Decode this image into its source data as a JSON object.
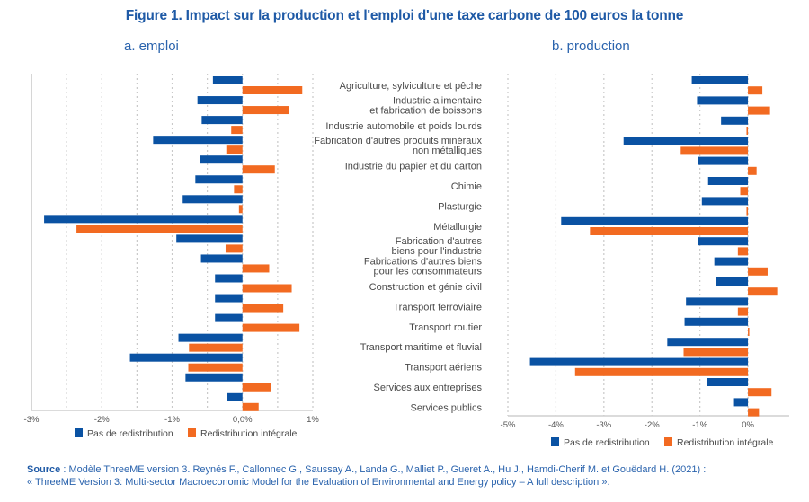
{
  "figure_title": "Figure 1. Impact sur la production et l'emploi d'une taxe carbone de 100 euros la tonne",
  "colors": {
    "pas_de_redistribution": "#0a52a3",
    "redistribution_integrale": "#f26a21",
    "title": "#1f5aa6"
  },
  "source": {
    "label": "Source",
    "line1": " : Modèle ThreeME version 3. Reynés F., Callonnec G., Saussay A., Landa G., Malliet P., Gueret A., Hu J., Hamdi-Cherif M. et Gouëdard H. (2021) :",
    "line2": "« ThreeME Version 3: Multi-sector Macroeconomic Model for the Evaluation of Environmental and Energy policy – A full description »."
  },
  "chart_data": [
    {
      "type": "bar",
      "orientation": "horizontal",
      "title": "a. emploi",
      "xlabel": "",
      "ylabel": "",
      "xlim": [
        -3,
        1
      ],
      "ticks": [
        -3,
        -2,
        -1,
        0,
        1
      ],
      "tick_labels": [
        "-3%",
        "-2%",
        "-1%",
        "0,0%",
        "1%"
      ],
      "grid": true,
      "legend_position": "bottom",
      "categories": [
        "Agriculture, sylviculture et pêche",
        "Industrie alimentaire et fabrication de boissons",
        "Industrie automobile et poids lourds",
        "Fabrication d'autres produits minéraux non métalliques",
        "Industrie du papier et du carton",
        "Chimie",
        "Plasturgie",
        "Métallurgie",
        "Fabrication d'autres biens pour l'industrie",
        "Fabrications d'autres biens pour les consommateurs",
        "Construction et génie civil",
        "Transport ferroviaire",
        "Transport routier",
        "Transport maritime et fluvial",
        "Transport aériens",
        "Services aux entreprises",
        "Services publics"
      ],
      "series": [
        {
          "name": "Pas de redistribution",
          "values": [
            -0.42,
            -0.64,
            -0.58,
            -1.27,
            -0.6,
            -0.67,
            -0.85,
            -2.82,
            -0.94,
            -0.59,
            -0.39,
            -0.39,
            -0.39,
            -0.91,
            -1.6,
            -0.81,
            -0.22
          ]
        },
        {
          "name": "Redistribution intégrale",
          "values": [
            0.85,
            0.66,
            -0.16,
            -0.23,
            0.46,
            -0.12,
            -0.05,
            -2.36,
            -0.24,
            0.38,
            0.7,
            0.58,
            0.81,
            -0.76,
            -0.77,
            0.4,
            0.23
          ]
        }
      ]
    },
    {
      "type": "bar",
      "orientation": "horizontal",
      "title": "b. production",
      "xlabel": "",
      "ylabel": "",
      "xlim": [
        -5,
        0.86
      ],
      "ticks": [
        -5,
        -4,
        -3,
        -2,
        -1,
        0
      ],
      "tick_labels": [
        "-5%",
        "-4%",
        "-3%",
        "-2%",
        "-1%",
        "0%"
      ],
      "grid": true,
      "legend_position": "bottom",
      "category_labels": [
        [
          "Agriculture, sylviculture et pêche"
        ],
        [
          "Industrie alimentaire",
          "et fabrication de boissons"
        ],
        [
          "Industrie automobile et poids lourds"
        ],
        [
          "Fabrication d'autres produits minéraux",
          "non métalliques"
        ],
        [
          "Industrie du papier et du carton"
        ],
        [
          "Chimie"
        ],
        [
          "Plasturgie"
        ],
        [
          "Métallurgie"
        ],
        [
          "Fabrication d'autres",
          "biens pour l'industrie"
        ],
        [
          "Fabrications d'autres biens",
          "pour les consommateurs"
        ],
        [
          "Construction et génie civil"
        ],
        [
          "Transport ferroviaire"
        ],
        [
          "Transport routier"
        ],
        [
          "Transport maritime et fluvial"
        ],
        [
          "Transport aériens"
        ],
        [
          "Services aux entreprises"
        ],
        [
          "Services publics"
        ]
      ],
      "series": [
        {
          "name": "Pas de redistribution",
          "values": [
            -1.17,
            -1.06,
            -0.56,
            -2.59,
            -1.04,
            -0.83,
            -0.96,
            -3.89,
            -1.04,
            -0.7,
            -0.66,
            -1.29,
            -1.32,
            -1.68,
            -4.54,
            -0.86,
            -0.29
          ]
        },
        {
          "name": "Redistribution intégrale",
          "values": [
            0.3,
            0.46,
            -0.03,
            -1.4,
            0.18,
            -0.16,
            -0.03,
            -3.29,
            -0.21,
            0.41,
            0.61,
            -0.21,
            0.02,
            -1.34,
            -3.6,
            0.49,
            0.23
          ]
        }
      ]
    }
  ]
}
